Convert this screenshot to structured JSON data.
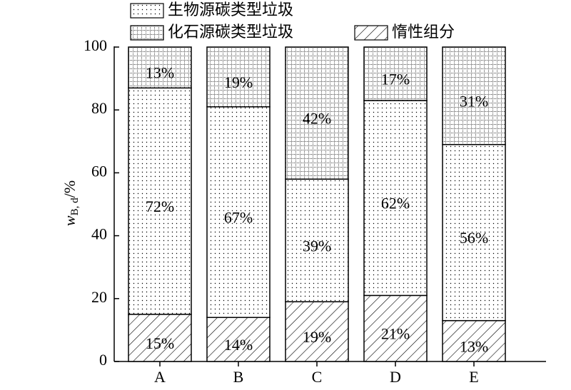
{
  "chart_data": {
    "type": "stacked_bar",
    "categories": [
      "A",
      "B",
      "C",
      "D",
      "E"
    ],
    "series": [
      {
        "name": "惰性组分",
        "color": "#000000",
        "pattern": "hatch",
        "values": [
          15,
          14,
          19,
          21,
          13
        ],
        "value_labels": [
          "15%",
          "14%",
          "19%",
          "21%",
          "13%"
        ]
      },
      {
        "name": "生物源碳类型垃圾",
        "color": "#000000",
        "pattern": "dots",
        "values": [
          72,
          67,
          39,
          62,
          56
        ],
        "value_labels": [
          "72%",
          "67%",
          "39%",
          "62%",
          "56%"
        ]
      },
      {
        "name": "化石源碳类型垃圾",
        "color": "#000000",
        "pattern": "grid",
        "values": [
          13,
          19,
          42,
          17,
          31
        ],
        "value_labels": [
          "13%",
          "19%",
          "42%",
          "17%",
          "31%"
        ]
      }
    ],
    "ylabel": {
      "symbol": "w",
      "subscript": "B, d",
      "suffix": "/%"
    },
    "ylim": [
      0,
      100
    ],
    "yticks": [
      0,
      20,
      40,
      60,
      80,
      100
    ]
  }
}
